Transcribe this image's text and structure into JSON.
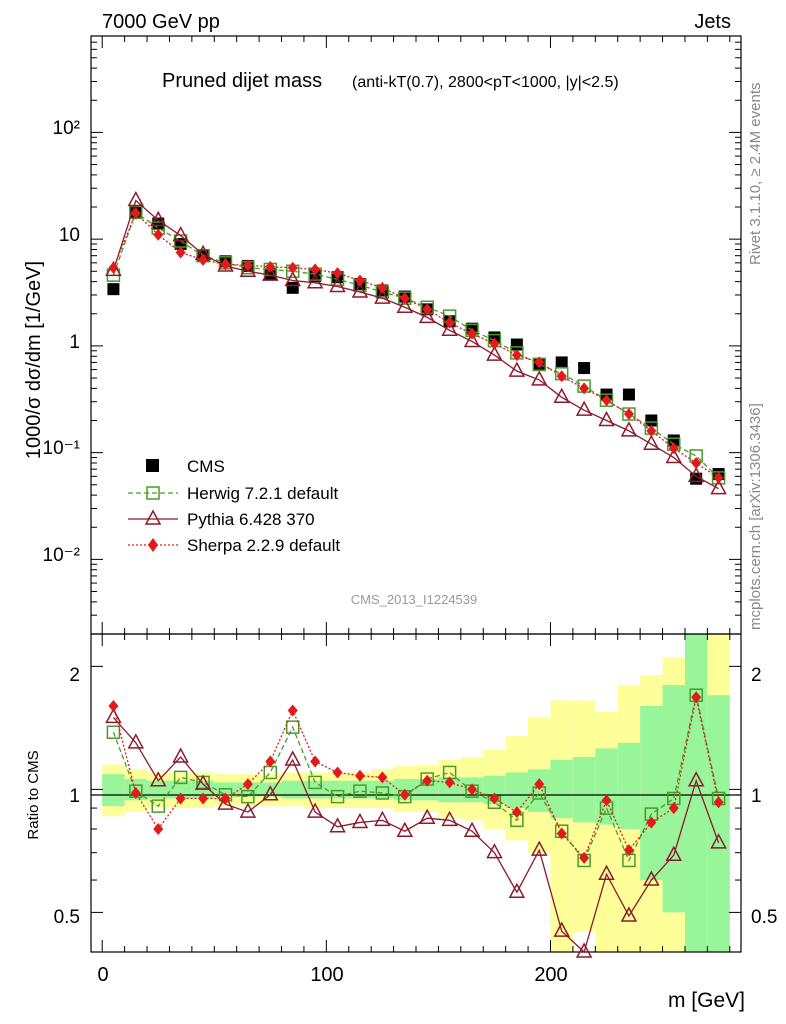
{
  "header": {
    "energy_label": "7000 GeV pp",
    "category_label": "Jets",
    "title_main": "Pruned dijet mass",
    "title_cuts": "(anti-kT(0.7), 2800<pT<1000, |y|<2.5)",
    "side_label_rivet": "Rivet 3.1.10, ≥ 2.4M events",
    "side_label_site": "mcplots.cern.ch [arXiv:1306.3436]",
    "watermark": "CMS_2013_I1224539"
  },
  "axes": {
    "main_ylabel": "1000/σ dσ/dm [1/GeV]",
    "ratio_ylabel": "Ratio to CMS",
    "xlabel": "m [GeV]",
    "x_ticks": [
      "0",
      "100",
      "200"
    ],
    "main_y_ticks": [
      "10⁻²",
      "10⁻¹",
      "1",
      "10",
      "10²"
    ],
    "ratio_y_ticks": [
      "0.5",
      "1",
      "2"
    ]
  },
  "legend": {
    "cms": "CMS",
    "herwig": "Herwig 7.2.1 default",
    "pythia": "Pythia 6.428 370",
    "sherpa": "Sherpa 2.2.9 default"
  },
  "colors": {
    "cms": "#000000",
    "herwig": "#4a9a2a",
    "pythia": "#8b1a2e",
    "sherpa": "#e31a1c",
    "band_inner": "#99f599",
    "band_outer": "#ffff99"
  },
  "chart_data": {
    "type": "line",
    "x_unit": "GeV",
    "xlim": [
      -5,
      285
    ],
    "main_ylim": [
      0.002,
      800
    ],
    "main_yscale": "log",
    "ratio_ylim": [
      0.4,
      2.4
    ],
    "ratio_yscale": "log",
    "x": [
      5,
      15,
      25,
      35,
      45,
      55,
      65,
      75,
      85,
      95,
      105,
      115,
      125,
      135,
      145,
      155,
      165,
      175,
      185,
      195,
      205,
      215,
      225,
      235,
      245,
      255,
      265,
      275
    ],
    "series": [
      {
        "name": "CMS",
        "values": [
          3.4,
          18,
          14,
          9,
          7,
          6.2,
          5.6,
          4.7,
          3.5,
          4.5,
          4.4,
          3.8,
          3.3,
          2.9,
          2.2,
          1.7,
          1.45,
          1.2,
          1.03,
          0.68,
          0.7,
          0.62,
          0.35,
          0.35,
          0.2,
          0.13,
          0.057,
          0.063
        ]
      },
      {
        "name": "Herwig 7.2.1 default",
        "values": [
          4.6,
          17.8,
          12.7,
          9.6,
          7.0,
          6.0,
          5.4,
          5.2,
          5.0,
          4.7,
          4.2,
          3.7,
          3.2,
          2.8,
          2.3,
          1.9,
          1.4,
          1.12,
          0.86,
          0.67,
          0.55,
          0.42,
          0.31,
          0.23,
          0.17,
          0.12,
          0.093,
          0.058
        ]
      },
      {
        "name": "Pythia 6.428 370",
        "values": [
          5.1,
          23,
          15,
          10.8,
          7.2,
          5.6,
          5.0,
          4.6,
          4.1,
          3.9,
          3.6,
          3.2,
          2.8,
          2.3,
          1.85,
          1.4,
          1.1,
          0.82,
          0.58,
          0.48,
          0.33,
          0.25,
          0.2,
          0.16,
          0.12,
          0.09,
          0.06,
          0.046
        ]
      },
      {
        "name": "Sherpa 2.2.9 default",
        "values": [
          5.4,
          17.5,
          11,
          7.5,
          6.4,
          5.8,
          5.7,
          5.5,
          5.4,
          5.2,
          4.8,
          4.1,
          3.5,
          2.8,
          2.2,
          1.65,
          1.3,
          1.05,
          0.82,
          0.7,
          0.52,
          0.4,
          0.31,
          0.23,
          0.16,
          0.11,
          0.08,
          0.058
        ]
      }
    ],
    "ratio_series": [
      {
        "name": "Herwig 7.2.1 default",
        "values": [
          1.38,
          0.99,
          0.91,
          1.07,
          1.04,
          0.97,
          0.96,
          1.1,
          1.42,
          1.04,
          0.96,
          0.99,
          0.98,
          0.96,
          1.06,
          1.1,
          0.99,
          0.93,
          0.84,
          0.98,
          0.79,
          0.67,
          0.9,
          0.67,
          0.87,
          0.95,
          1.7,
          0.95
        ]
      },
      {
        "name": "Pythia 6.428 370",
        "values": [
          1.5,
          1.3,
          1.05,
          1.2,
          1.03,
          0.92,
          0.88,
          0.97,
          1.18,
          0.88,
          0.81,
          0.83,
          0.84,
          0.79,
          0.85,
          0.84,
          0.79,
          0.7,
          0.56,
          0.71,
          0.45,
          0.39,
          0.62,
          0.49,
          0.6,
          0.69,
          1.05,
          0.74
        ]
      },
      {
        "name": "Sherpa 2.2.9 default",
        "values": [
          1.6,
          0.98,
          0.8,
          0.95,
          0.95,
          0.95,
          1.03,
          1.17,
          1.56,
          1.17,
          1.1,
          1.08,
          1.07,
          0.97,
          1.05,
          1.04,
          1.0,
          0.95,
          0.88,
          1.03,
          0.78,
          0.68,
          0.94,
          0.71,
          0.83,
          0.9,
          1.68,
          0.93
        ]
      }
    ],
    "ratio_band_inner": [
      [
        0.91,
        1.09
      ],
      [
        0.94,
        1.06
      ],
      [
        0.95,
        1.05
      ],
      [
        0.95,
        1.05
      ],
      [
        0.95,
        1.05
      ],
      [
        0.96,
        1.04
      ],
      [
        0.96,
        1.04
      ],
      [
        0.96,
        1.04
      ],
      [
        0.95,
        1.05
      ],
      [
        0.95,
        1.05
      ],
      [
        0.95,
        1.05
      ],
      [
        0.95,
        1.05
      ],
      [
        0.95,
        1.05
      ],
      [
        0.94,
        1.06
      ],
      [
        0.94,
        1.06
      ],
      [
        0.93,
        1.07
      ],
      [
        0.93,
        1.07
      ],
      [
        0.92,
        1.08
      ],
      [
        0.9,
        1.1
      ],
      [
        0.88,
        1.12
      ],
      [
        0.85,
        1.18
      ],
      [
        0.83,
        1.2
      ],
      [
        0.82,
        1.26
      ],
      [
        0.8,
        1.3
      ],
      [
        0.6,
        1.6
      ],
      [
        0.5,
        1.8
      ],
      [
        0.4,
        2.4
      ],
      [
        0.4,
        1.7
      ]
    ],
    "ratio_band_outer": [
      [
        0.86,
        1.15
      ],
      [
        0.88,
        1.12
      ],
      [
        0.9,
        1.1
      ],
      [
        0.9,
        1.1
      ],
      [
        0.9,
        1.1
      ],
      [
        0.91,
        1.09
      ],
      [
        0.91,
        1.09
      ],
      [
        0.91,
        1.09
      ],
      [
        0.91,
        1.1
      ],
      [
        0.9,
        1.1
      ],
      [
        0.9,
        1.1
      ],
      [
        0.9,
        1.1
      ],
      [
        0.9,
        1.12
      ],
      [
        0.88,
        1.14
      ],
      [
        0.88,
        1.15
      ],
      [
        0.85,
        1.18
      ],
      [
        0.84,
        1.2
      ],
      [
        0.8,
        1.25
      ],
      [
        0.75,
        1.35
      ],
      [
        0.7,
        1.5
      ],
      [
        0.4,
        1.65
      ],
      [
        0.45,
        1.65
      ],
      [
        0.4,
        1.55
      ],
      [
        0.4,
        1.8
      ],
      [
        0.4,
        1.9
      ],
      [
        0.4,
        2.1
      ],
      [
        0.4,
        2.4
      ],
      [
        0.4,
        2.4
      ]
    ]
  }
}
